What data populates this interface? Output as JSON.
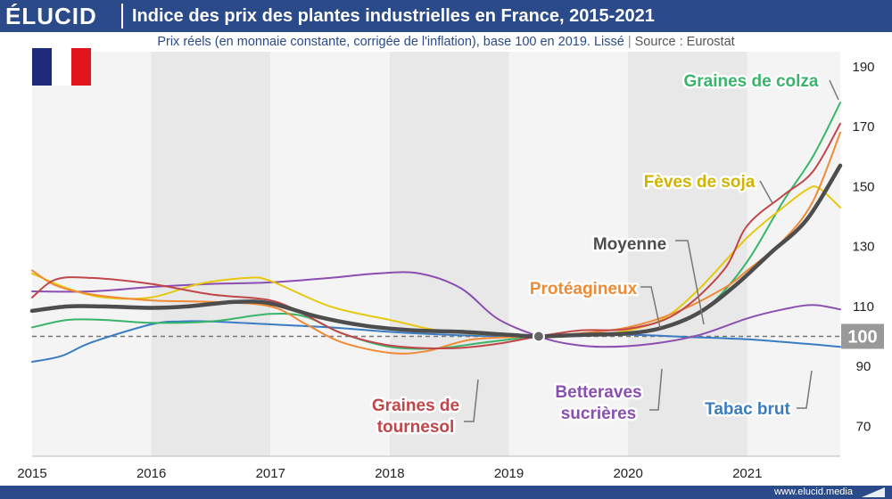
{
  "header": {
    "logo": "ÉLUCID",
    "title": "Indice des prix des plantes industrielles en France, 2015-2021",
    "subtitle": "Prix réels (en monnaie constante, corrigée de l'inflation), base 100 en 2019. Lissé",
    "separator": "|",
    "source": "Source : Eurostat"
  },
  "footer": {
    "url": "www.elucid.media"
  },
  "flag": {
    "colors": [
      "#1f2b7a",
      "#ffffff",
      "#e2141c"
    ]
  },
  "colors": {
    "header_bg": "#2a4a8a",
    "band_light": "#f4f4f4",
    "band_dark": "#e8e8e8",
    "baseline": "#777777"
  },
  "chart_data": {
    "type": "line",
    "title": "Indice des prix des plantes industrielles en France, 2015-2021",
    "x_ticks": [
      "2015",
      "2016",
      "2017",
      "2018",
      "2019",
      "2020",
      "2021"
    ],
    "y_ticks": [
      "190",
      "170",
      "150",
      "130",
      "110",
      "90",
      "70"
    ],
    "y_tick_values": [
      190,
      170,
      150,
      130,
      110,
      90,
      70
    ],
    "xlim": [
      2015,
      2021.78
    ],
    "ylim": [
      60,
      195
    ],
    "baseline": {
      "value": 100,
      "label": "100"
    },
    "reference_point": {
      "x": 2019.25,
      "y": 100
    },
    "grid": "vertical year bands",
    "series": [
      {
        "name": "Tabac brut",
        "color": "#3a7cc2",
        "width": 2,
        "x": [
          2015.0,
          2015.25,
          2015.5,
          2016.0,
          2016.25,
          2016.5,
          2017.0,
          2017.5,
          2018.0,
          2018.5,
          2019.0,
          2019.25,
          2019.5,
          2020.0,
          2020.5,
          2021.0,
          2021.5,
          2021.78
        ],
        "y": [
          91.5,
          93.5,
          98,
          104,
          105,
          105,
          104,
          103,
          101.5,
          100.5,
          100,
          100,
          100,
          100.5,
          99.8,
          99,
          97.5,
          96.5
        ]
      },
      {
        "name": "Betteraves sucrières",
        "color": "#8a4fb0",
        "width": 2,
        "x": [
          2015.0,
          2015.5,
          2016.0,
          2016.5,
          2017.0,
          2017.5,
          2017.9,
          2018.25,
          2018.6,
          2018.9,
          2019.25,
          2019.5,
          2019.8,
          2020.2,
          2020.6,
          2021.0,
          2021.3,
          2021.55,
          2021.78
        ],
        "y": [
          115,
          115,
          116.5,
          117.5,
          118,
          119.5,
          121,
          121,
          116,
          106,
          100,
          97.5,
          96.5,
          97.5,
          100.5,
          106,
          109,
          110.5,
          109
        ]
      },
      {
        "name": "Graines de colza",
        "color": "#38b56a",
        "width": 2,
        "x": [
          2015.0,
          2015.3,
          2015.6,
          2016.0,
          2016.5,
          2017.0,
          2017.3,
          2017.6,
          2018.0,
          2018.4,
          2018.8,
          2019.25,
          2019.6,
          2020.0,
          2020.4,
          2020.7,
          2021.0,
          2021.3,
          2021.55,
          2021.78
        ],
        "y": [
          103,
          105.5,
          105.5,
          104.5,
          105,
          107.5,
          106.5,
          101,
          96.5,
          96,
          98,
          100,
          100.5,
          101,
          104,
          111,
          125,
          145,
          160,
          178
        ]
      },
      {
        "name": "Fèves de soja",
        "color": "#e6c80f",
        "width": 2,
        "x": [
          2015.0,
          2015.3,
          2015.6,
          2016.0,
          2016.4,
          2016.8,
          2017.0,
          2017.5,
          2018.0,
          2018.5,
          2019.25,
          2019.7,
          2020.0,
          2020.3,
          2020.6,
          2021.0,
          2021.3,
          2021.5,
          2021.6,
          2021.78
        ],
        "y": [
          121,
          116,
          113,
          113,
          117.5,
          119.5,
          118.5,
          110,
          105.5,
          101.5,
          100,
          100.5,
          102,
          106,
          116,
          133,
          143,
          149,
          149.5,
          143
        ]
      },
      {
        "name": "Protéagineux",
        "color": "#ef8a35",
        "width": 2,
        "x": [
          2015.0,
          2015.2,
          2015.5,
          2016.0,
          2016.5,
          2017.0,
          2017.3,
          2017.6,
          2018.0,
          2018.3,
          2018.7,
          2019.25,
          2019.6,
          2020.0,
          2020.4,
          2020.8,
          2021.0,
          2021.3,
          2021.55,
          2021.78
        ],
        "y": [
          122,
          117,
          114,
          112,
          111.5,
          110,
          104,
          98,
          94.5,
          95,
          99,
          100,
          101,
          103,
          108,
          116,
          122,
          132,
          145,
          168
        ]
      },
      {
        "name": "Graines de tournesol",
        "color": "#c0464a",
        "width": 2,
        "x": [
          2015.0,
          2015.2,
          2015.5,
          2016.0,
          2016.5,
          2017.0,
          2017.3,
          2017.6,
          2018.0,
          2018.5,
          2018.9,
          2019.25,
          2019.6,
          2020.0,
          2020.4,
          2020.8,
          2021.0,
          2021.3,
          2021.55,
          2021.78
        ],
        "y": [
          113,
          119,
          119.5,
          117.5,
          114,
          112,
          107,
          101,
          97,
          96,
          97.5,
          100,
          102,
          102.5,
          107.5,
          122,
          137,
          147,
          155,
          171
        ]
      },
      {
        "name": "Moyenne",
        "color": "#4d4d4d",
        "width": 4.5,
        "x": [
          2015.0,
          2015.3,
          2015.6,
          2016.0,
          2016.3,
          2016.7,
          2017.0,
          2017.4,
          2017.8,
          2018.2,
          2018.6,
          2019.0,
          2019.25,
          2019.6,
          2020.0,
          2020.3,
          2020.6,
          2020.9,
          2021.2,
          2021.5,
          2021.78
        ],
        "y": [
          108.5,
          110,
          110,
          109.5,
          110,
          111.5,
          111,
          106.5,
          103.5,
          102,
          101.5,
          100.5,
          100,
          100.5,
          101,
          103,
          108,
          117,
          128,
          139,
          157
        ]
      }
    ],
    "labels": [
      {
        "text": "Graines de colza",
        "color": "#38b56a",
        "lines": [
          "Graines de colza"
        ]
      },
      {
        "text": "Fèves de soja",
        "color": "#d2b400",
        "lines": [
          "Fèves de soja"
        ]
      },
      {
        "text": "Moyenne",
        "color": "#4d4d4d",
        "lines": [
          "Moyenne"
        ]
      },
      {
        "text": "Protéagineux",
        "color": "#ef8a35",
        "lines": [
          "Protéagineux"
        ]
      },
      {
        "text": "Graines de tournesol",
        "color": "#c0464a",
        "lines": [
          "Graines de",
          "tournesol"
        ]
      },
      {
        "text": "Betteraves sucrières",
        "color": "#8a4fb0",
        "lines": [
          "Betteraves",
          "sucrières"
        ]
      },
      {
        "text": "Tabac brut",
        "color": "#3a7cc2",
        "lines": [
          "Tabac brut"
        ]
      }
    ]
  }
}
